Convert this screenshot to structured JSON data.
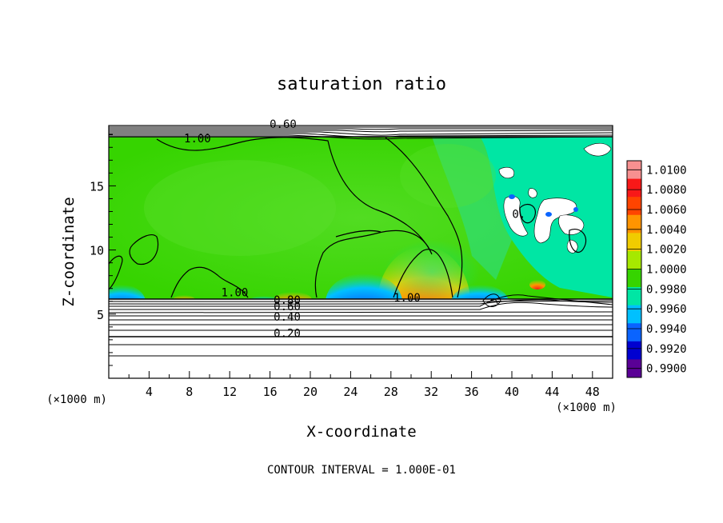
{
  "chart_data": {
    "type": "heatmap",
    "title": "saturation ratio",
    "xlabel": "X-coordinate",
    "ylabel": "Z-coordinate",
    "x_unit": "(×1000 m)",
    "z_unit": "(×1000 m)",
    "footer": "CONTOUR INTERVAL = 1.000E-01",
    "xlim": [
      0,
      50
    ],
    "ylim": [
      0,
      19.7
    ],
    "x_ticks": [
      "4",
      "8",
      "12",
      "16",
      "20",
      "24",
      "28",
      "32",
      "36",
      "40",
      "44",
      "48"
    ],
    "y_ticks": [
      "5",
      "10",
      "15"
    ],
    "colorbar": {
      "labels": [
        "1.0100",
        "1.0080",
        "1.0060",
        "1.0040",
        "1.0020",
        "1.0000",
        "0.9980",
        "0.9960",
        "0.9940",
        "0.9920",
        "0.9900"
      ],
      "colors": [
        "#f79090",
        "#f81818",
        "#ff4400",
        "#ff9400",
        "#f0cc00",
        "#a6e800",
        "#36d400",
        "#00e6a4",
        "#00c0ff",
        "#0a64ff",
        "#0000d0",
        "#5a0096"
      ]
    },
    "contour_labels": [
      {
        "text": "0.60",
        "x": 17.3,
        "y": 19.5
      },
      {
        "text": "1.00",
        "x": 8.8,
        "y": 18.4
      },
      {
        "text": "1.00",
        "x": 12.5,
        "y": 6.4
      },
      {
        "text": "0.80",
        "x": 17.7,
        "y": 5.8
      },
      {
        "text": "0.60",
        "x": 17.7,
        "y": 5.3
      },
      {
        "text": "0.40",
        "x": 17.7,
        "y": 4.5
      },
      {
        "text": "0.20",
        "x": 17.7,
        "y": 3.2
      },
      {
        "text": "1.00",
        "x": 29.6,
        "y": 6.0
      },
      {
        "text": "0.",
        "x": 40.7,
        "y": 12.5
      }
    ]
  }
}
